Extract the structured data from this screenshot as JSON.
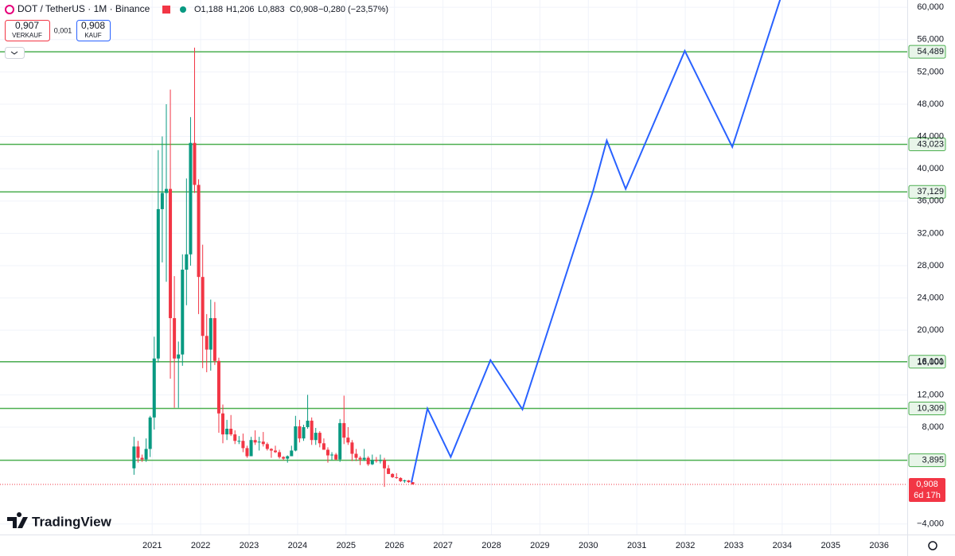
{
  "header": {
    "symbol": "DOT / TetherUS · 1M · Binance",
    "open": "O1,188",
    "high": "H1,206",
    "low": "L0,883",
    "close": "C0,908",
    "change": "−0,280 (−23,57%)",
    "sell_price": "0,907",
    "sell_label": "VERKAUF",
    "spread": "0,001",
    "buy_price": "0,908",
    "buy_label": "KAUF"
  },
  "brand": "TradingView",
  "chart_data": {
    "type": "candlestick",
    "candles": {
      "x": [
        2020.625,
        2020.708,
        2020.792,
        2020.875,
        2020.958,
        2021.042,
        2021.125,
        2021.208,
        2021.292,
        2021.375,
        2021.458,
        2021.542,
        2021.625,
        2021.708,
        2021.792,
        2021.875,
        2021.958,
        2022.042,
        2022.125,
        2022.208,
        2022.292,
        2022.375,
        2022.458,
        2022.542,
        2022.625,
        2022.708,
        2022.792,
        2022.875,
        2022.958,
        2023.042,
        2023.125,
        2023.208,
        2023.292,
        2023.375,
        2023.458,
        2023.542,
        2023.625,
        2023.708,
        2023.792,
        2023.875,
        2023.958,
        2024.042,
        2024.125,
        2024.208,
        2024.292,
        2024.375,
        2024.458,
        2024.542,
        2024.625,
        2024.708,
        2024.792,
        2024.875,
        2024.958,
        2025.042,
        2025.125,
        2025.208,
        2025.292,
        2025.375,
        2025.458,
        2025.542,
        2025.625,
        2025.708,
        2025.792,
        2025.875,
        2025.958,
        2026.042,
        2026.125,
        2026.208,
        2026.292,
        2026.375
      ],
      "open": [
        2.9,
        5.6,
        4.2,
        4.0,
        5.3,
        9.2,
        16.5,
        35.0,
        37.0,
        37.5,
        21.5,
        16.5,
        17.0,
        27.5,
        29.4,
        43.2,
        38.0,
        26.6,
        19.3,
        17.6,
        21.5,
        16.2,
        9.7,
        7.1,
        7.8,
        7.1,
        6.3,
        6.3,
        5.4,
        4.4,
        6.4,
        6.1,
        6.2,
        5.9,
        5.3,
        5.1,
        4.9,
        4.3,
        4.1,
        4.4,
        5.1,
        8.1,
        6.6,
        8.0,
        8.8,
        6.4,
        7.3,
        6.0,
        5.2,
        4.5,
        4.6,
        4.0,
        8.5,
        6.7,
        6.1,
        4.7,
        4.2,
        4.0,
        4.2,
        3.4,
        3.9,
        3.8,
        3.9,
        2.9,
        2.2,
        1.8,
        1.7,
        1.3,
        1.4,
        1.188
      ],
      "high": [
        6.8,
        6.3,
        4.6,
        6.6,
        9.4,
        19.2,
        42.3,
        44.0,
        48.0,
        49.8,
        26.7,
        18.6,
        29.4,
        38.8,
        46.4,
        55.0,
        38.7,
        30.6,
        22.0,
        23.8,
        23.5,
        16.6,
        10.8,
        8.9,
        9.5,
        7.6,
        6.9,
        7.2,
        5.7,
        6.8,
        7.6,
        6.8,
        7.4,
        6.1,
        5.4,
        5.7,
        5.2,
        4.4,
        4.5,
        5.7,
        9.4,
        8.9,
        8.3,
        12.0,
        9.2,
        7.9,
        7.5,
        6.6,
        5.5,
        4.9,
        4.8,
        9.0,
        11.9,
        8.0,
        6.4,
        5.3,
        4.4,
        5.3,
        4.4,
        4.6,
        4.3,
        4.6,
        4.2,
        3.3,
        2.3,
        2.3,
        1.8,
        1.5,
        1.45,
        1.206
      ],
      "low": [
        2.1,
        3.6,
        3.7,
        3.7,
        4.3,
        7.7,
        16.0,
        28.4,
        26.0,
        14.0,
        10.4,
        10.4,
        15.6,
        23.1,
        28.0,
        37.0,
        22.0,
        15.3,
        14.8,
        15.0,
        15.7,
        7.3,
        6.0,
        6.4,
        6.9,
        5.9,
        5.9,
        4.9,
        4.2,
        4.4,
        5.8,
        5.1,
        5.6,
        5.1,
        4.2,
        4.8,
        4.1,
        3.9,
        3.6,
        4.4,
        5.0,
        6.1,
        6.3,
        7.8,
        5.8,
        5.8,
        5.5,
        5.2,
        3.6,
        3.9,
        3.9,
        3.7,
        5.9,
        5.8,
        3.8,
        3.8,
        3.3,
        3.8,
        3.2,
        3.3,
        3.6,
        3.5,
        0.6,
        2.2,
        1.7,
        1.6,
        1.2,
        1.1,
        1.1,
        0.883
      ],
      "close": [
        5.6,
        4.2,
        4.0,
        5.3,
        9.2,
        16.5,
        35.0,
        37.0,
        37.5,
        21.5,
        16.5,
        17.0,
        27.5,
        29.4,
        43.2,
        38.0,
        26.6,
        19.3,
        17.6,
        21.5,
        16.2,
        9.7,
        7.1,
        7.8,
        7.1,
        6.3,
        6.3,
        5.4,
        4.4,
        6.4,
        6.1,
        6.2,
        5.9,
        5.3,
        5.1,
        4.9,
        4.3,
        4.1,
        4.4,
        5.1,
        8.1,
        6.6,
        8.0,
        8.8,
        6.4,
        7.3,
        6.0,
        5.2,
        4.5,
        4.6,
        4.0,
        8.5,
        6.7,
        6.1,
        4.7,
        4.2,
        4.0,
        4.2,
        3.4,
        3.9,
        3.8,
        3.9,
        2.9,
        2.2,
        1.8,
        1.7,
        1.3,
        1.4,
        1.188,
        0.908
      ],
      "up_color": "#089981",
      "down_color": "#f23645"
    },
    "projection": {
      "color": "#2962ff",
      "x": [
        2026.35,
        2026.68,
        2027.16,
        2027.98,
        2028.64,
        2030.1,
        2030.38,
        2030.77,
        2031.99,
        2032.97,
        2033.96
      ],
      "values": [
        1.15,
        10.3,
        4.3,
        16.3,
        10.2,
        37.3,
        43.5,
        37.5,
        54.6,
        42.7,
        61.0
      ]
    },
    "levels": {
      "color": "#4caf50",
      "values": [
        {
          "value": 54.489,
          "label": "54,489"
        },
        {
          "value": 43.023,
          "label": "43,023"
        },
        {
          "value": 37.129,
          "label": "37,129"
        },
        {
          "value": 16.101,
          "label": "16,101"
        },
        {
          "value": 10.309,
          "label": "10,309"
        },
        {
          "value": 3.895,
          "label": "3,895"
        }
      ]
    },
    "last_price": {
      "value": 0.908,
      "label": "0,908",
      "countdown": "6d 17h",
      "color": "#f23645"
    },
    "xlim": [
      2017.86,
      2036.58
    ],
    "xticks": [
      2021,
      2022,
      2023,
      2024,
      2025,
      2026,
      2027,
      2028,
      2029,
      2030,
      2031,
      2032,
      2033,
      2034,
      2035,
      2036
    ],
    "ylim": [
      -5.3,
      60.9
    ],
    "yticks": [
      {
        "value": -4,
        "label": "−4,000"
      },
      {
        "value": 8,
        "label": "8,000"
      },
      {
        "value": 12,
        "label": "12,000"
      },
      {
        "value": 16,
        "label": "16,000"
      },
      {
        "value": 20,
        "label": "20,000"
      },
      {
        "value": 24,
        "label": "24,000"
      },
      {
        "value": 28,
        "label": "28,000"
      },
      {
        "value": 32,
        "label": "32,000"
      },
      {
        "value": 36,
        "label": "36,000"
      },
      {
        "value": 40,
        "label": "40,000"
      },
      {
        "value": 44,
        "label": "44,000"
      },
      {
        "value": 48,
        "label": "48,000"
      },
      {
        "value": 52,
        "label": "52,000"
      },
      {
        "value": 56,
        "label": "56,000"
      },
      {
        "value": 60,
        "label": "60,000"
      }
    ],
    "grid": true
  }
}
